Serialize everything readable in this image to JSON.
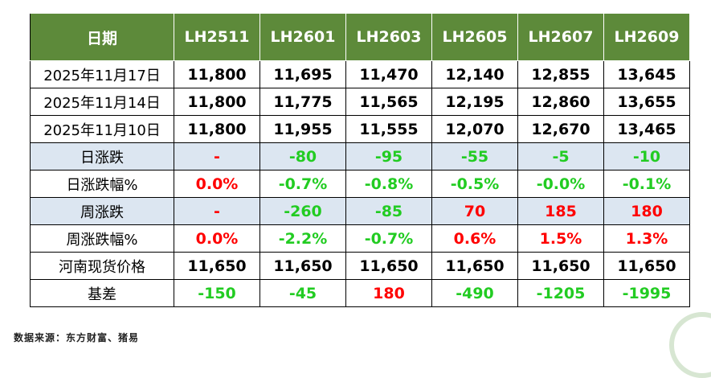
{
  "table": {
    "header": [
      "日期",
      "LH2511",
      "LH2601",
      "LH2603",
      "LH2605",
      "LH2607",
      "LH2609"
    ],
    "rows": [
      {
        "label": "2025年11月17日",
        "band": false,
        "cells": [
          {
            "v": "11,800",
            "c": ""
          },
          {
            "v": "11,695",
            "c": ""
          },
          {
            "v": "11,470",
            "c": ""
          },
          {
            "v": "12,140",
            "c": ""
          },
          {
            "v": "12,855",
            "c": ""
          },
          {
            "v": "13,645",
            "c": ""
          }
        ]
      },
      {
        "label": "2025年11月14日",
        "band": false,
        "cells": [
          {
            "v": "11,800",
            "c": ""
          },
          {
            "v": "11,775",
            "c": ""
          },
          {
            "v": "11,565",
            "c": ""
          },
          {
            "v": "12,195",
            "c": ""
          },
          {
            "v": "12,860",
            "c": ""
          },
          {
            "v": "13,655",
            "c": ""
          }
        ]
      },
      {
        "label": "2025年11月10日",
        "band": false,
        "cells": [
          {
            "v": "11,800",
            "c": ""
          },
          {
            "v": "11,955",
            "c": ""
          },
          {
            "v": "11,555",
            "c": ""
          },
          {
            "v": "12,070",
            "c": ""
          },
          {
            "v": "12,670",
            "c": ""
          },
          {
            "v": "13,465",
            "c": ""
          }
        ]
      },
      {
        "label": "日涨跌",
        "band": true,
        "cells": [
          {
            "v": "-",
            "c": "zero"
          },
          {
            "v": "-80",
            "c": "neg"
          },
          {
            "v": "-95",
            "c": "neg"
          },
          {
            "v": "-55",
            "c": "neg"
          },
          {
            "v": "-5",
            "c": "neg"
          },
          {
            "v": "-10",
            "c": "neg"
          }
        ]
      },
      {
        "label": "日涨跌幅%",
        "band": false,
        "cells": [
          {
            "v": "0.0%",
            "c": "zero"
          },
          {
            "v": "-0.7%",
            "c": "neg"
          },
          {
            "v": "-0.8%",
            "c": "neg"
          },
          {
            "v": "-0.5%",
            "c": "neg"
          },
          {
            "v": "-0.0%",
            "c": "neg"
          },
          {
            "v": "-0.1%",
            "c": "neg"
          }
        ]
      },
      {
        "label": "周涨跌",
        "band": true,
        "cells": [
          {
            "v": "-",
            "c": "zero"
          },
          {
            "v": "-260",
            "c": "neg"
          },
          {
            "v": "-85",
            "c": "neg"
          },
          {
            "v": "70",
            "c": "pos"
          },
          {
            "v": "185",
            "c": "pos"
          },
          {
            "v": "180",
            "c": "pos"
          }
        ]
      },
      {
        "label": "周涨跌幅%",
        "band": false,
        "cells": [
          {
            "v": "0.0%",
            "c": "zero"
          },
          {
            "v": "-2.2%",
            "c": "neg"
          },
          {
            "v": "-0.7%",
            "c": "neg"
          },
          {
            "v": "0.6%",
            "c": "pos"
          },
          {
            "v": "1.5%",
            "c": "pos"
          },
          {
            "v": "1.3%",
            "c": "pos"
          }
        ]
      },
      {
        "label": "河南现货价格",
        "band": false,
        "cells": [
          {
            "v": "11,650",
            "c": ""
          },
          {
            "v": "11,650",
            "c": ""
          },
          {
            "v": "11,650",
            "c": ""
          },
          {
            "v": "11,650",
            "c": ""
          },
          {
            "v": "11,650",
            "c": ""
          },
          {
            "v": "11,650",
            "c": ""
          }
        ]
      },
      {
        "label": "基差",
        "band": false,
        "cells": [
          {
            "v": "-150",
            "c": "neg"
          },
          {
            "v": "-45",
            "c": "neg"
          },
          {
            "v": "180",
            "c": "pos"
          },
          {
            "v": "-490",
            "c": "neg"
          },
          {
            "v": "-1205",
            "c": "neg"
          },
          {
            "v": "-1995",
            "c": "neg"
          }
        ]
      }
    ]
  },
  "source_note": "数据来源：东方财富、猪易",
  "colors": {
    "header_bg": "#5d8a3a",
    "band_bg": "#dce6f1",
    "up": "#ff0000",
    "down": "#22cc22"
  }
}
